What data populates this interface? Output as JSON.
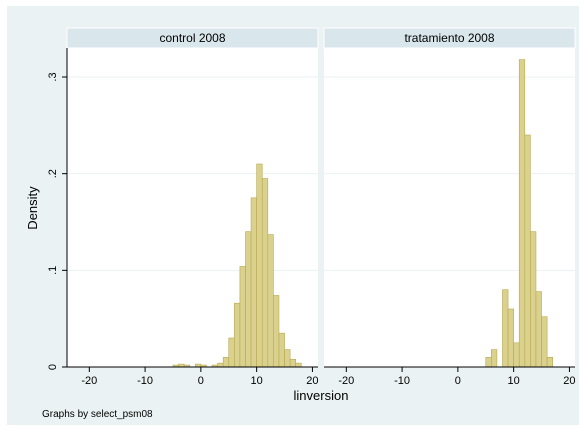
{
  "chart_data": {
    "type": "bar",
    "ylabel": "Density",
    "xlabel": "linversion",
    "note": "Graphs by select_psm08",
    "xlim": [
      -24,
      21
    ],
    "ylim": [
      0,
      0.33
    ],
    "xticks": [
      -20,
      -10,
      0,
      10,
      20
    ],
    "yticks": [
      0,
      0.1,
      0.2,
      0.3
    ],
    "ytick_labels": [
      "0",
      ".1",
      ".2",
      ".3"
    ],
    "bar_color": "#dbd18e",
    "bar_edge": "#b7a94f",
    "panels": [
      {
        "title": "control 2008",
        "bins": [
          {
            "x0": -5,
            "x1": -4,
            "y": 0.002
          },
          {
            "x0": -4,
            "x1": -3,
            "y": 0.003
          },
          {
            "x0": -3,
            "x1": -2,
            "y": 0.002
          },
          {
            "x0": -1,
            "x1": 0,
            "y": 0.003
          },
          {
            "x0": 0,
            "x1": 1,
            "y": 0.002
          },
          {
            "x0": 2,
            "x1": 3,
            "y": 0.002
          },
          {
            "x0": 3,
            "x1": 4,
            "y": 0.004
          },
          {
            "x0": 4,
            "x1": 5,
            "y": 0.01
          },
          {
            "x0": 5,
            "x1": 6,
            "y": 0.03
          },
          {
            "x0": 6,
            "x1": 7,
            "y": 0.066
          },
          {
            "x0": 7,
            "x1": 8,
            "y": 0.104
          },
          {
            "x0": 8,
            "x1": 9,
            "y": 0.14
          },
          {
            "x0": 9,
            "x1": 10,
            "y": 0.175
          },
          {
            "x0": 10,
            "x1": 11,
            "y": 0.21
          },
          {
            "x0": 11,
            "x1": 12,
            "y": 0.195
          },
          {
            "x0": 12,
            "x1": 13,
            "y": 0.137
          },
          {
            "x0": 13,
            "x1": 14,
            "y": 0.074
          },
          {
            "x0": 14,
            "x1": 15,
            "y": 0.035
          },
          {
            "x0": 15,
            "x1": 16,
            "y": 0.018
          },
          {
            "x0": 16,
            "x1": 17,
            "y": 0.008
          },
          {
            "x0": 17,
            "x1": 18,
            "y": 0.004
          }
        ]
      },
      {
        "title": "tratamiento 2008",
        "bins": [
          {
            "x0": 5,
            "x1": 6,
            "y": 0.01
          },
          {
            "x0": 6,
            "x1": 7,
            "y": 0.018
          },
          {
            "x0": 8,
            "x1": 9,
            "y": 0.08
          },
          {
            "x0": 9,
            "x1": 10,
            "y": 0.06
          },
          {
            "x0": 10,
            "x1": 11,
            "y": 0.025
          },
          {
            "x0": 11,
            "x1": 12,
            "y": 0.318
          },
          {
            "x0": 12,
            "x1": 13,
            "y": 0.24
          },
          {
            "x0": 13,
            "x1": 14,
            "y": 0.14
          },
          {
            "x0": 14,
            "x1": 15,
            "y": 0.078
          },
          {
            "x0": 15,
            "x1": 16,
            "y": 0.052
          },
          {
            "x0": 16,
            "x1": 17,
            "y": 0.01
          }
        ]
      }
    ]
  }
}
